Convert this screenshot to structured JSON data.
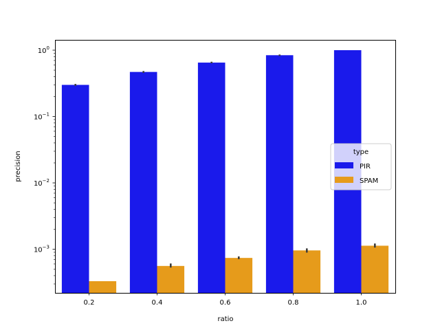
{
  "chart_data": {
    "type": "bar",
    "categories": [
      "0.2",
      "0.4",
      "0.6",
      "0.8",
      "1.0"
    ],
    "series": [
      {
        "name": "PIR",
        "color": "#1a1aeb",
        "values": [
          0.3,
          0.47,
          0.65,
          0.84,
          1.0
        ],
        "err_low": [
          0.29,
          0.455,
          0.635,
          0.82,
          1.0
        ],
        "err_high": [
          0.31,
          0.485,
          0.67,
          0.86,
          1.0
        ]
      },
      {
        "name": "SPAM",
        "color": "#e69b1b",
        "values": [
          0.00033,
          0.00056,
          0.00074,
          0.00096,
          0.00113
        ],
        "err_low": [
          0.00033,
          0.00053,
          0.00071,
          0.00089,
          0.00106
        ],
        "err_high": [
          0.00033,
          0.00061,
          0.00078,
          0.00103,
          0.00122
        ]
      }
    ],
    "xlabel": "ratio",
    "ylabel": "precision",
    "yscale": "log",
    "ylim": [
      0.00022,
      1.43
    ],
    "yticks": [
      {
        "value": 1,
        "base": "10",
        "exp": "0"
      },
      {
        "value": 0.1,
        "base": "10",
        "exp": "−1"
      },
      {
        "value": 0.01,
        "base": "10",
        "exp": "−2"
      },
      {
        "value": 0.001,
        "base": "10",
        "exp": "−3"
      }
    ],
    "grid": false,
    "legend": {
      "title": "type",
      "placement": "center-right"
    }
  }
}
